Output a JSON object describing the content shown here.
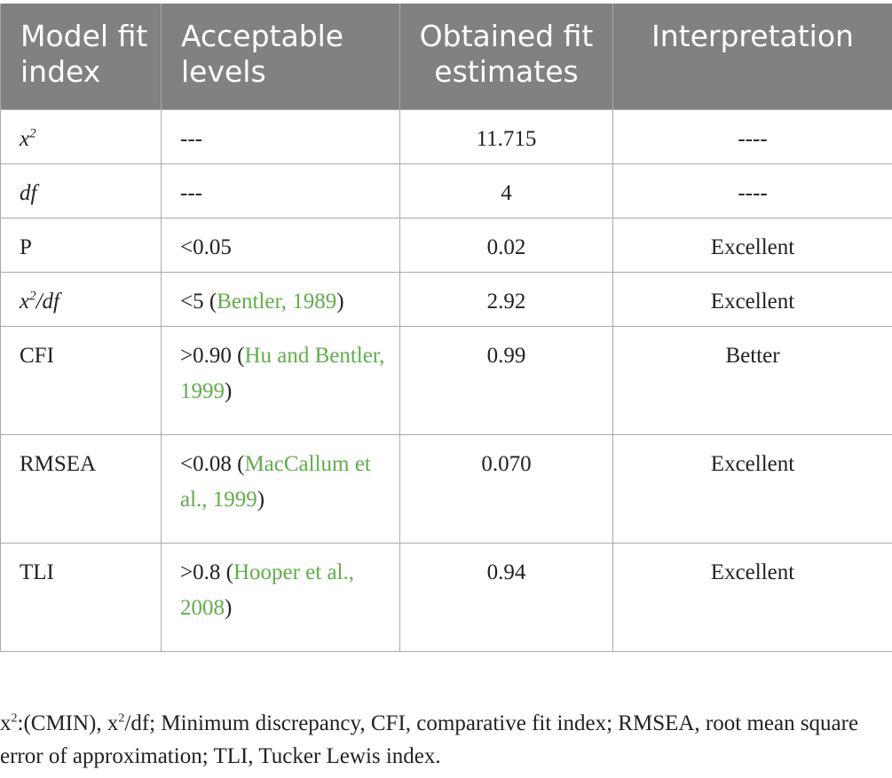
{
  "table": {
    "headers": [
      "Model fit index",
      "Acceptable levels",
      "Obtained fit estimates",
      "Interpretation"
    ],
    "rows": [
      {
        "index_base": "x",
        "index_sup": "2",
        "index_rest": "",
        "level": "---",
        "cite": "",
        "level_close": "",
        "estimate": "11.715",
        "interpretation": "----"
      },
      {
        "index_base": "df",
        "index_sup": "",
        "index_rest": "",
        "level": "---",
        "cite": "",
        "level_close": "",
        "estimate": "4",
        "interpretation": "----"
      },
      {
        "index_base": "P",
        "index_sup": "",
        "index_rest": "",
        "level": "<0.05",
        "cite": "",
        "level_close": "",
        "estimate": "0.02",
        "interpretation": "Excellent"
      },
      {
        "index_base": "x",
        "index_sup": "2",
        "index_rest": "/df",
        "level": "<5 (",
        "cite": "Bentler, 1989",
        "level_close": ")",
        "estimate": "2.92",
        "interpretation": "Excellent"
      },
      {
        "index_base": "CFI",
        "index_sup": "",
        "index_rest": "",
        "level": ">0.90 (",
        "cite": "Hu and Bentler, 1999",
        "level_close": ")",
        "estimate": "0.99",
        "interpretation": "Better"
      },
      {
        "index_base": "RMSEA",
        "index_sup": "",
        "index_rest": "",
        "level": "<0.08 (",
        "cite": "MacCallum et al., 1999",
        "level_close": ")",
        "estimate": "0.070",
        "interpretation": "Excellent"
      },
      {
        "index_base": "TLI",
        "index_sup": "",
        "index_rest": "",
        "level": ">0.8 (",
        "cite": "Hooper et al., 2008",
        "level_close": ")",
        "estimate": "0.94",
        "interpretation": "Excellent"
      }
    ]
  },
  "footnote": {
    "a": "x",
    "a_sup": "2",
    "b": ":(CMIN), x",
    "b_sup": "2",
    "c": "/df; Minimum discrepancy, CFI, comparative fit index; RMSEA, root mean square error of approximation; TLI, Tucker Lewis index."
  }
}
